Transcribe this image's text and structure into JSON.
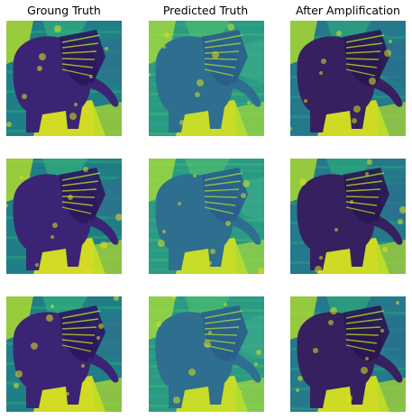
{
  "columns": [
    {
      "title": "Groung Truth",
      "variant": "ground-truth"
    },
    {
      "title": "Predicted Truth",
      "variant": "predicted"
    },
    {
      "title": "After Amplification",
      "variant": "amplified"
    }
  ],
  "rows": 3,
  "colormap": "viridis",
  "palettes": {
    "ground-truth": {
      "background": "#1f7f86",
      "dark": "#3b2474",
      "darker": "#2d175f",
      "mid": "#2f6f8f",
      "light": "#b7de2a",
      "bright": "#e5e419",
      "accent": "#35b779"
    },
    "predicted": {
      "background": "#2a9a83",
      "dark": "#2e6e8e",
      "darker": "#2a5f8b",
      "mid": "#3aa88a",
      "light": "#a6db3a",
      "bright": "#d8e21f",
      "accent": "#51c26a"
    },
    "amplified": {
      "background": "#247a8a",
      "dark": "#36205f",
      "darker": "#2a1650",
      "mid": "#2c6f8f",
      "light": "#b2dd2c",
      "bright": "#e2e41a",
      "accent": "#2eaf7b"
    }
  }
}
